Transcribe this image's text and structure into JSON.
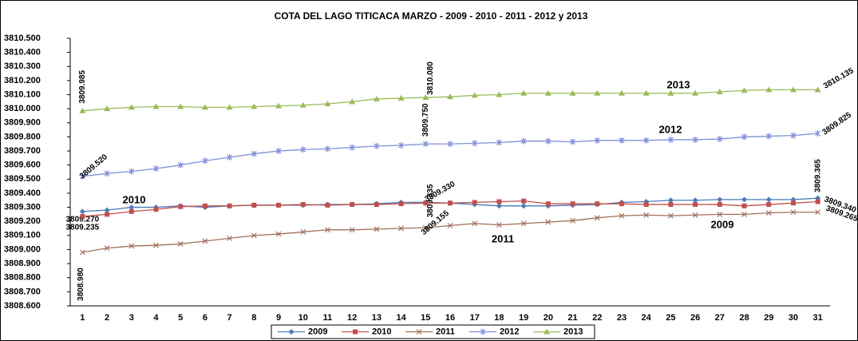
{
  "chart_data": {
    "type": "line",
    "title": "COTA DEL LAGO TITICACA    MARZO - 2009 - 2010 - 2011 - 2012 y 2013",
    "categories": [
      "1",
      "2",
      "3",
      "4",
      "5",
      "6",
      "7",
      "8",
      "9",
      "10",
      "11",
      "12",
      "13",
      "14",
      "15",
      "16",
      "17",
      "18",
      "19",
      "20",
      "21",
      "22",
      "23",
      "24",
      "25",
      "26",
      "27",
      "28",
      "29",
      "30",
      "31"
    ],
    "ylim": [
      3808.6,
      3810.5
    ],
    "yticks": [
      {
        "value": 3808.6,
        "label": "3808.600"
      },
      {
        "value": 3808.7,
        "label": "3808.700"
      },
      {
        "value": 3808.8,
        "label": "3808.800"
      },
      {
        "value": 3808.9,
        "label": "3808.900"
      },
      {
        "value": 3809.0,
        "label": "3809.000"
      },
      {
        "value": 3809.1,
        "label": "3809.100"
      },
      {
        "value": 3809.2,
        "label": "3809.200"
      },
      {
        "value": 3809.3,
        "label": "3809.300"
      },
      {
        "value": 3809.4,
        "label": "3809.400"
      },
      {
        "value": 3809.5,
        "label": "3809.500"
      },
      {
        "value": 3809.6,
        "label": "3809.600"
      },
      {
        "value": 3809.7,
        "label": "3809.700"
      },
      {
        "value": 3809.8,
        "label": "3809.800"
      },
      {
        "value": 3809.9,
        "label": "3809.900"
      },
      {
        "value": 3810.0,
        "label": "3810.000"
      },
      {
        "value": 3810.1,
        "label": "3810.100"
      },
      {
        "value": 3810.2,
        "label": "3810.200"
      },
      {
        "value": 3810.3,
        "label": "3810.300"
      },
      {
        "value": 3810.4,
        "label": "3810.400"
      },
      {
        "value": 3810.5,
        "label": "3810.500"
      }
    ],
    "legend": "bottom",
    "series": [
      {
        "name": "2009",
        "color": "#4a7ab8",
        "marker": "diamond",
        "label_color": "#1f3864",
        "values": [
          3809.27,
          3809.28,
          3809.3,
          3809.3,
          3809.31,
          3809.3,
          3809.31,
          3809.315,
          3809.315,
          3809.315,
          3809.32,
          3809.32,
          3809.325,
          3809.335,
          3809.335,
          3809.33,
          3809.32,
          3809.31,
          3809.31,
          3809.31,
          3809.315,
          3809.32,
          3809.335,
          3809.34,
          3809.35,
          3809.35,
          3809.355,
          3809.355,
          3809.355,
          3809.355,
          3809.365
        ],
        "value_labels": [
          "3809.270",
          null,
          null,
          null,
          null,
          null,
          null,
          null,
          null,
          null,
          null,
          null,
          null,
          null,
          "3809.335",
          null,
          null,
          null,
          null,
          null,
          null,
          null,
          null,
          null,
          null,
          null,
          null,
          null,
          null,
          null,
          "3809.365"
        ]
      },
      {
        "name": "2010",
        "color": "#c0504d",
        "marker": "square",
        "label_color": "#cc00cc",
        "values": [
          3809.235,
          3809.25,
          3809.27,
          3809.285,
          3809.305,
          3809.31,
          3809.31,
          3809.315,
          3809.315,
          3809.32,
          3809.315,
          3809.32,
          3809.32,
          3809.325,
          3809.33,
          3809.33,
          3809.335,
          3809.34,
          3809.345,
          3809.325,
          3809.325,
          3809.325,
          3809.325,
          3809.32,
          3809.32,
          3809.32,
          3809.32,
          3809.31,
          3809.32,
          3809.33,
          3809.34
        ],
        "value_labels": [
          "3809.235",
          null,
          null,
          null,
          null,
          null,
          null,
          null,
          null,
          null,
          null,
          null,
          null,
          null,
          "3809.330",
          null,
          null,
          null,
          null,
          null,
          null,
          null,
          null,
          null,
          null,
          null,
          null,
          null,
          null,
          null,
          "3809.340"
        ]
      },
      {
        "name": "2011",
        "color": "#a0705a",
        "marker": "x",
        "label_color": "#1fb0e0",
        "values": [
          3808.98,
          3809.01,
          3809.025,
          3809.03,
          3809.04,
          3809.06,
          3809.08,
          3809.1,
          3809.11,
          3809.125,
          3809.14,
          3809.14,
          3809.145,
          3809.15,
          3809.155,
          3809.17,
          3809.185,
          3809.175,
          3809.185,
          3809.195,
          3809.205,
          3809.225,
          3809.24,
          3809.245,
          3809.24,
          3809.245,
          3809.25,
          3809.25,
          3809.26,
          3809.265,
          3809.265
        ],
        "value_labels": [
          "3808.980",
          null,
          null,
          null,
          null,
          null,
          null,
          null,
          null,
          null,
          null,
          null,
          null,
          null,
          "3809.155",
          null,
          null,
          null,
          null,
          null,
          null,
          null,
          null,
          null,
          null,
          null,
          null,
          null,
          null,
          null,
          "3809.265"
        ]
      },
      {
        "name": "2012",
        "color": "#7f8fd8",
        "marker": "star",
        "label_color": "#a05a8a",
        "values": [
          3809.52,
          3809.54,
          3809.555,
          3809.575,
          3809.6,
          3809.63,
          3809.655,
          3809.68,
          3809.7,
          3809.71,
          3809.715,
          3809.725,
          3809.735,
          3809.74,
          3809.75,
          3809.75,
          3809.755,
          3809.76,
          3809.77,
          3809.77,
          3809.765,
          3809.775,
          3809.775,
          3809.775,
          3809.78,
          3809.78,
          3809.785,
          3809.8,
          3809.805,
          3809.81,
          3809.825
        ],
        "value_labels": [
          "3809.520",
          null,
          null,
          null,
          null,
          null,
          null,
          null,
          null,
          null,
          null,
          null,
          null,
          null,
          "3809.750",
          null,
          null,
          null,
          null,
          null,
          null,
          null,
          null,
          null,
          null,
          null,
          null,
          null,
          null,
          null,
          "3809.825"
        ]
      },
      {
        "name": "2013",
        "color": "#9bbb59",
        "marker": "triangle",
        "label_color": "#77a032",
        "values": [
          3809.985,
          3810.0,
          3810.01,
          3810.015,
          3810.015,
          3810.01,
          3810.01,
          3810.015,
          3810.02,
          3810.025,
          3810.035,
          3810.05,
          3810.07,
          3810.075,
          3810.08,
          3810.085,
          3810.095,
          3810.1,
          3810.11,
          3810.11,
          3810.11,
          3810.11,
          3810.11,
          3810.11,
          3810.11,
          3810.11,
          3810.12,
          3810.13,
          3810.135,
          3810.135,
          3810.135
        ],
        "value_labels": [
          "3809.985",
          null,
          null,
          null,
          null,
          null,
          null,
          null,
          null,
          null,
          null,
          null,
          null,
          null,
          "3810.080",
          null,
          null,
          null,
          null,
          null,
          null,
          null,
          null,
          null,
          null,
          null,
          null,
          null,
          null,
          null,
          "3810.135"
        ]
      }
    ]
  }
}
